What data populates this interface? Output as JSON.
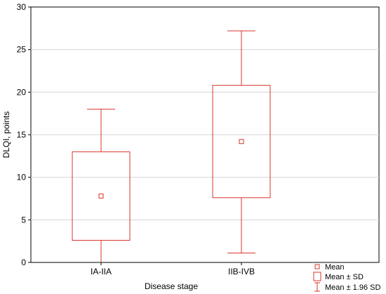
{
  "chart_data": {
    "type": "box",
    "xlabel": "Disease stage",
    "ylabel": "DLQI, points",
    "ylim": [
      0,
      30
    ],
    "yticks": [
      0,
      5,
      10,
      15,
      20,
      25,
      30
    ],
    "grid": true,
    "categories": [
      "IA-IIA",
      "IIB-IVB"
    ],
    "groups": [
      {
        "category": "IA-IIA",
        "mean": 7.8,
        "sd_low": 2.6,
        "sd_high": 13.0,
        "ci_low": 0,
        "ci_high": 18.0
      },
      {
        "category": "IIB-IVB",
        "mean": 14.2,
        "sd_low": 7.6,
        "sd_high": 20.8,
        "ci_low": 1.1,
        "ci_high": 27.2
      }
    ],
    "legend": {
      "placement": "bottom-right",
      "entries": [
        "Mean",
        "Mean ± SD",
        "Mean ± 1.96 SD"
      ]
    },
    "colors": {
      "marks": "#d9342b",
      "grid": "#d4d4d4",
      "axis": "#000000"
    }
  }
}
